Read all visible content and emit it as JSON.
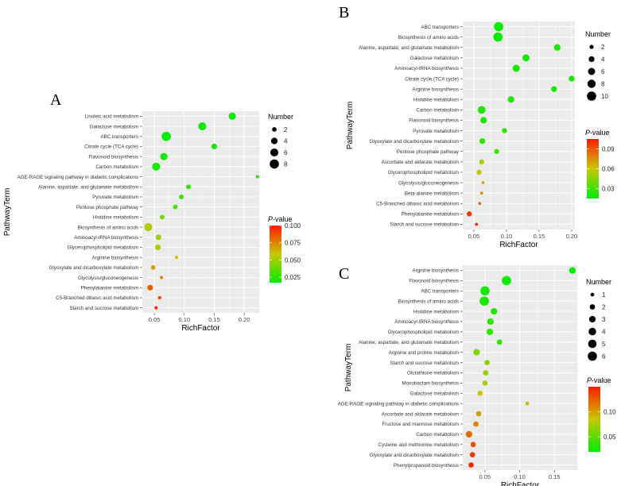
{
  "colors": {
    "panel_bg": "#ebebeb",
    "grid": "#ffffff",
    "low": "#00ee00",
    "mid": "#c8c800",
    "high": "#ff1a00"
  },
  "chart_data": [
    {
      "panel": "A",
      "type": "scatter",
      "xlabel": "RichFactor",
      "ylabel": "PathwayTerm",
      "xlim": [
        0.03,
        0.225
      ],
      "xticks": [
        0.05,
        0.1,
        0.15,
        0.2
      ],
      "xtick_labels": [
        "0.05",
        "0.10",
        "0.15",
        "0.20"
      ],
      "size_legend": {
        "title": "Number",
        "breaks": [
          2,
          4,
          6,
          8
        ],
        "labels": [
          "2",
          "4",
          "6",
          "8"
        ],
        "max": 8
      },
      "color_legend": {
        "title_prefix": "P",
        "title_suffix": "-value",
        "min": 0.017,
        "max": 0.1,
        "breaks": [
          0.025,
          0.05,
          0.075,
          0.1
        ],
        "labels": [
          "0.025",
          "0.050",
          "0.075",
          "0.100"
        ]
      },
      "points": [
        {
          "term": "Linoleic acid metabolism",
          "rich": 0.18,
          "num": 5,
          "p": 0.02
        },
        {
          "term": "Galactose metabolism",
          "rich": 0.13,
          "num": 6,
          "p": 0.02
        },
        {
          "term": "ABC transporters",
          "rich": 0.07,
          "num": 8,
          "p": 0.018
        },
        {
          "term": "Citrate cycle (TCA cycle)",
          "rich": 0.15,
          "num": 3,
          "p": 0.02
        },
        {
          "term": "Flavonoid biosynthesis",
          "rich": 0.066,
          "num": 5,
          "p": 0.022
        },
        {
          "term": "Carbon metabolism",
          "rich": 0.053,
          "num": 6,
          "p": 0.022
        },
        {
          "term": "AGE-RAGE signaling pathway in diabetic complications",
          "rich": 0.222,
          "num": 1,
          "p": 0.025
        },
        {
          "term": "Alanine, aspartate, and glutamate metabolism",
          "rich": 0.107,
          "num": 2,
          "p": 0.025
        },
        {
          "term": "Pyruvate metabolism",
          "rich": 0.095,
          "num": 2,
          "p": 0.028
        },
        {
          "term": "Pentose phosphate pathway",
          "rich": 0.085,
          "num": 2,
          "p": 0.03
        },
        {
          "term": "Histidine metabolism",
          "rich": 0.063,
          "num": 2,
          "p": 0.04
        },
        {
          "term": "Biosynthesis of amino acids",
          "rich": 0.04,
          "num": 6,
          "p": 0.055
        },
        {
          "term": "Aminoacyl-tRNA biosynthesis",
          "rich": 0.057,
          "num": 3,
          "p": 0.05
        },
        {
          "term": "Glycerophospholipid metabolism",
          "rich": 0.056,
          "num": 3,
          "p": 0.053
        },
        {
          "term": "Arginine biosynthesis",
          "rich": 0.087,
          "num": 1,
          "p": 0.06
        },
        {
          "term": "Glyoxylate and dicarboxylate metabolism",
          "rich": 0.048,
          "num": 2,
          "p": 0.068
        },
        {
          "term": "Glycolysis/gluconeogenesis",
          "rich": 0.062,
          "num": 1,
          "p": 0.075
        },
        {
          "term": "Phenylalanine metabolism",
          "rich": 0.043,
          "num": 3,
          "p": 0.085
        },
        {
          "term": "C5-Branched dibasic acid metabolism",
          "rich": 0.059,
          "num": 1,
          "p": 0.09
        },
        {
          "term": "Starch and sucrose metabolism",
          "rich": 0.053,
          "num": 1,
          "p": 0.098
        }
      ]
    },
    {
      "panel": "B",
      "type": "scatter",
      "xlabel": "RichFactor",
      "ylabel": "PathwayTerm",
      "xlim": [
        0.033,
        0.205
      ],
      "xticks": [
        0.05,
        0.1,
        0.15,
        0.2
      ],
      "xtick_labels": [
        "0.05",
        "0.10",
        "0.15",
        "0.20"
      ],
      "size_legend": {
        "title": "Number",
        "breaks": [
          2,
          4,
          6,
          8,
          10
        ],
        "labels": [
          "2",
          "4",
          "6",
          "8",
          "10"
        ],
        "max": 10
      },
      "color_legend": {
        "title_prefix": "P",
        "title_suffix": "-value",
        "min": 0.015,
        "max": 0.105,
        "breaks": [
          0.03,
          0.06,
          0.09
        ],
        "labels": [
          "0.03",
          "0.06",
          "0.09"
        ]
      },
      "points": [
        {
          "term": "ABC transporters",
          "rich": 0.088,
          "num": 10,
          "p": 0.017
        },
        {
          "term": "Biosynthesis of amino acids",
          "rich": 0.087,
          "num": 10,
          "p": 0.017
        },
        {
          "term": "Alanine, aspartate, and glutamate metabolism",
          "rich": 0.178,
          "num": 5,
          "p": 0.02
        },
        {
          "term": "Galactose metabolism",
          "rich": 0.13,
          "num": 6,
          "p": 0.02
        },
        {
          "term": "Aminoacyl-tRNA biosynthesis",
          "rich": 0.115,
          "num": 6,
          "p": 0.02
        },
        {
          "term": "Citrate cycle (TCA cycle)",
          "rich": 0.2,
          "num": 4,
          "p": 0.02
        },
        {
          "term": "Arginine biosynthesis",
          "rich": 0.173,
          "num": 4,
          "p": 0.02
        },
        {
          "term": "Histidine metabolism",
          "rich": 0.107,
          "num": 5,
          "p": 0.022
        },
        {
          "term": "Carbon metabolism",
          "rich": 0.062,
          "num": 7,
          "p": 0.022
        },
        {
          "term": "Flavonoid biosynthesis",
          "rich": 0.065,
          "num": 5,
          "p": 0.022
        },
        {
          "term": "Pyruvate metabolism",
          "rich": 0.097,
          "num": 3,
          "p": 0.025
        },
        {
          "term": "Glyoxylate and dicarboxylate metabolism",
          "rich": 0.063,
          "num": 4,
          "p": 0.025
        },
        {
          "term": "Pentose phosphate pathway",
          "rich": 0.085,
          "num": 3,
          "p": 0.028
        },
        {
          "term": "Ascorbate and aldarate metabolism",
          "rich": 0.062,
          "num": 3,
          "p": 0.055
        },
        {
          "term": "Glycerophospholipid metabolism",
          "rich": 0.058,
          "num": 3,
          "p": 0.06
        },
        {
          "term": "Glycolysis/gluconeogenesis",
          "rich": 0.064,
          "num": 1,
          "p": 0.07
        },
        {
          "term": "Beta-alanine metabolism",
          "rich": 0.062,
          "num": 1,
          "p": 0.078
        },
        {
          "term": "C5-Branched dibasic acid metabolism",
          "rich": 0.059,
          "num": 1,
          "p": 0.085
        },
        {
          "term": "Phenylalanine metabolism",
          "rich": 0.043,
          "num": 3,
          "p": 0.098
        },
        {
          "term": "Starch and sucrose metabolism",
          "rich": 0.054,
          "num": 1,
          "p": 0.103
        }
      ]
    },
    {
      "panel": "C",
      "type": "scatter",
      "xlabel": "RichFactor",
      "ylabel": "PathwayTerm",
      "xlim": [
        0.018,
        0.183
      ],
      "xticks": [
        0.05,
        0.1,
        0.15
      ],
      "xtick_labels": [
        "0.05",
        "0.10",
        "0.15"
      ],
      "size_legend": {
        "title": "Number",
        "breaks": [
          1,
          2,
          3,
          4,
          5,
          6
        ],
        "labels": [
          "1",
          "2",
          "3",
          "4",
          "5",
          "6"
        ],
        "max": 6
      },
      "color_legend": {
        "title_prefix": "P",
        "title_suffix": "-value",
        "min": 0.02,
        "max": 0.15,
        "breaks": [
          0.05,
          0.1
        ],
        "labels": [
          "0.05",
          "0.10"
        ]
      },
      "points": [
        {
          "term": "Arginine biosynthesis",
          "rich": 0.176,
          "num": 3,
          "p": 0.02
        },
        {
          "term": "Flavonoid biosynthesis",
          "rich": 0.081,
          "num": 6,
          "p": 0.022
        },
        {
          "term": "ABC transporters",
          "rich": 0.05,
          "num": 6,
          "p": 0.028
        },
        {
          "term": "Biosynthesis of amino acids",
          "rich": 0.049,
          "num": 6,
          "p": 0.028
        },
        {
          "term": "Histidine metabolism",
          "rich": 0.063,
          "num": 3,
          "p": 0.03
        },
        {
          "term": "Aminoacyl-tRNA biosynthesis",
          "rich": 0.058,
          "num": 3,
          "p": 0.035
        },
        {
          "term": "Glycerophospholipid metabolism",
          "rich": 0.057,
          "num": 3,
          "p": 0.035
        },
        {
          "term": "Alanine, aspartate, and glutamate metabolism",
          "rich": 0.071,
          "num": 2,
          "p": 0.035
        },
        {
          "term": "Arginine and proline metabolism",
          "rich": 0.038,
          "num": 3,
          "p": 0.06
        },
        {
          "term": "Starch and sucrose metabolism",
          "rich": 0.053,
          "num": 2,
          "p": 0.065
        },
        {
          "term": "Glutathione metabolism",
          "rich": 0.051,
          "num": 2,
          "p": 0.07
        },
        {
          "term": "Monobactam biosynthesis",
          "rich": 0.05,
          "num": 2,
          "p": 0.075
        },
        {
          "term": "Galactose metabolism",
          "rich": 0.043,
          "num": 2,
          "p": 0.085
        },
        {
          "term": "AGE-RAGE signaling pathway in diabetic complications",
          "rich": 0.111,
          "num": 1,
          "p": 0.09
        },
        {
          "term": "Ascorbate and aldarate metabolism",
          "rich": 0.041,
          "num": 2,
          "p": 0.1
        },
        {
          "term": "Fructose and mannose metabolism",
          "rich": 0.037,
          "num": 2,
          "p": 0.11
        },
        {
          "term": "Carbon metabolism",
          "rich": 0.027,
          "num": 3,
          "p": 0.12
        },
        {
          "term": "Cysteine and methionine metabolism",
          "rich": 0.033,
          "num": 2,
          "p": 0.13
        },
        {
          "term": "Glyoxylate and dicarboxylate metabolism",
          "rich": 0.032,
          "num": 2,
          "p": 0.14
        },
        {
          "term": "Phenylpropanoid biosynthesis",
          "rich": 0.03,
          "num": 2,
          "p": 0.145
        }
      ]
    }
  ]
}
